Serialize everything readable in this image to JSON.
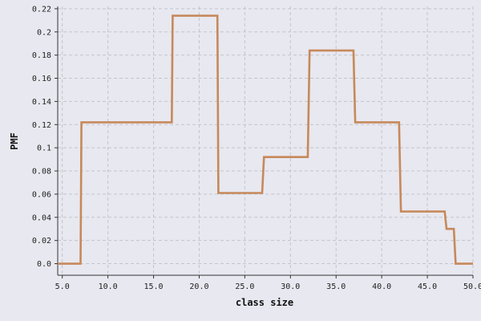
{
  "chart_data": {
    "type": "line",
    "style": "step",
    "title": "",
    "xlabel": "class size",
    "ylabel": "PMF",
    "xlim": [
      4.5,
      50.0
    ],
    "ylim": [
      -0.01,
      0.222
    ],
    "x_ticks": [
      "5.0",
      "10.0",
      "15.0",
      "20.0",
      "25.0",
      "30.0",
      "35.0",
      "40.0",
      "45.0",
      "50.0"
    ],
    "y_ticks": [
      "0.0",
      "0.02",
      "0.04",
      "0.06",
      "0.08",
      "0.1",
      "0.12",
      "0.14",
      "0.16",
      "0.18",
      "0.2",
      "0.22"
    ],
    "grid": true,
    "legend": "none",
    "series": [
      {
        "color": "#c6895a",
        "points": [
          {
            "x": 4.5,
            "y": 0.0
          },
          {
            "x": 7.0,
            "y": 0.0
          },
          {
            "x": 7.1,
            "y": 0.122
          },
          {
            "x": 17.0,
            "y": 0.122
          },
          {
            "x": 17.1,
            "y": 0.214
          },
          {
            "x": 22.0,
            "y": 0.214
          },
          {
            "x": 22.1,
            "y": 0.061
          },
          {
            "x": 26.9,
            "y": 0.061
          },
          {
            "x": 27.1,
            "y": 0.092
          },
          {
            "x": 31.9,
            "y": 0.092
          },
          {
            "x": 32.1,
            "y": 0.184
          },
          {
            "x": 36.9,
            "y": 0.184
          },
          {
            "x": 37.1,
            "y": 0.122
          },
          {
            "x": 41.9,
            "y": 0.122
          },
          {
            "x": 42.1,
            "y": 0.045
          },
          {
            "x": 46.9,
            "y": 0.045
          },
          {
            "x": 47.1,
            "y": 0.03
          },
          {
            "x": 47.9,
            "y": 0.03
          },
          {
            "x": 48.1,
            "y": 0.0
          },
          {
            "x": 50.0,
            "y": 0.0
          }
        ]
      }
    ]
  }
}
